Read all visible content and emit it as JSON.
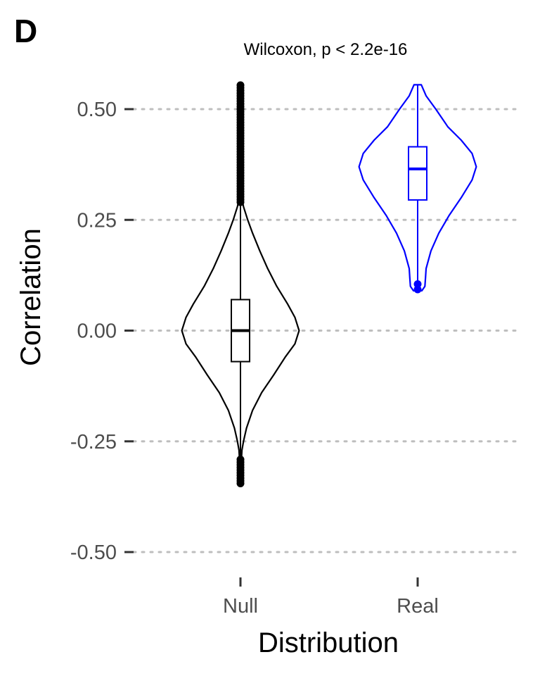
{
  "panel_label": "D",
  "chart_data": {
    "type": "violin",
    "annotation": "Wilcoxon, p < 2.2e-16",
    "xlabel": "Distribution",
    "ylabel": "Correlation",
    "ylim": [
      -0.55,
      0.56
    ],
    "yticks": [
      0.5,
      0.25,
      0.0,
      -0.25,
      -0.5
    ],
    "ytick_labels": [
      "0.50",
      "0.25",
      "0.00",
      "-0.25",
      "-0.50"
    ],
    "grid": "horizontal dotted",
    "legend": "none",
    "categories": [
      "Null",
      "Real"
    ],
    "groups": [
      {
        "category": "Null",
        "color": "#000000",
        "box": {
          "q1": -0.07,
          "median": 0.0,
          "q3": 0.07,
          "whisker_low": -0.29,
          "whisker_high": 0.29
        },
        "outlier_range_high": [
          0.29,
          0.555
        ],
        "outlier_range_low": [
          -0.345,
          -0.29
        ],
        "density": [
          [
            -0.345,
            0.005
          ],
          [
            -0.3,
            0.012
          ],
          [
            -0.27,
            0.025
          ],
          [
            -0.25,
            0.05
          ],
          [
            -0.22,
            0.1
          ],
          [
            -0.18,
            0.2
          ],
          [
            -0.14,
            0.35
          ],
          [
            -0.1,
            0.55
          ],
          [
            -0.06,
            0.74
          ],
          [
            -0.03,
            0.9
          ],
          [
            0.0,
            0.97
          ],
          [
            0.03,
            0.9
          ],
          [
            0.06,
            0.78
          ],
          [
            0.1,
            0.6
          ],
          [
            0.14,
            0.45
          ],
          [
            0.18,
            0.32
          ],
          [
            0.22,
            0.2
          ],
          [
            0.25,
            0.12
          ],
          [
            0.28,
            0.05
          ],
          [
            0.3,
            0.022
          ],
          [
            0.35,
            0.012
          ],
          [
            0.45,
            0.007
          ],
          [
            0.555,
            0.004
          ]
        ]
      },
      {
        "category": "Real",
        "color": "#0000ff",
        "box": {
          "q1": 0.295,
          "median": 0.365,
          "q3": 0.415,
          "whisker_low": 0.11,
          "whisker_high": 0.555
        },
        "outliers": [
          0.105,
          0.093
        ],
        "density": [
          [
            0.09,
            0.07
          ],
          [
            0.1,
            0.12
          ],
          [
            0.12,
            0.13
          ],
          [
            0.14,
            0.14
          ],
          [
            0.18,
            0.22
          ],
          [
            0.22,
            0.35
          ],
          [
            0.26,
            0.52
          ],
          [
            0.3,
            0.72
          ],
          [
            0.34,
            0.9
          ],
          [
            0.37,
            0.97
          ],
          [
            0.4,
            0.9
          ],
          [
            0.43,
            0.72
          ],
          [
            0.46,
            0.5
          ],
          [
            0.5,
            0.3
          ],
          [
            0.53,
            0.14
          ],
          [
            0.555,
            0.06
          ]
        ]
      }
    ]
  }
}
